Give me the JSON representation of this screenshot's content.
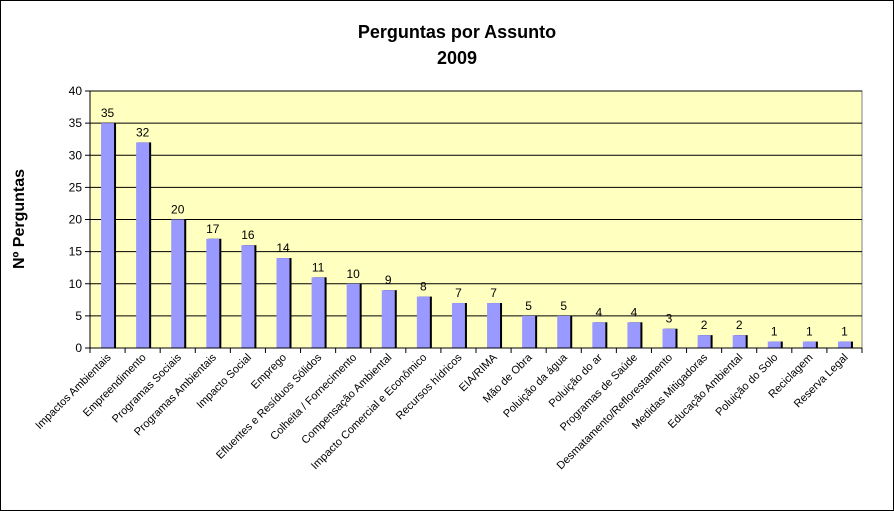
{
  "chart_data": {
    "type": "bar",
    "title": "Perguntas por Assunto",
    "subtitle": "2009",
    "ylabel": "Nº Perguntas",
    "xlabel": "",
    "ylim": [
      0,
      40
    ],
    "yticks": [
      0,
      5,
      10,
      15,
      20,
      25,
      30,
      35,
      40
    ],
    "grid": true,
    "legend": "none",
    "colors": {
      "plot_bg": "#FFFFC0",
      "bar": "#9999FF",
      "bar_shadow": "#000000",
      "grid": "#000000"
    },
    "categories": [
      "Impactos Ambientais",
      "Empreendimento",
      "Programas Sociais",
      "Programas Ambientais",
      "Impacto Social",
      "Emprego",
      "Efluentes e Resíduos Sólidos",
      "Colheita / Fornecimento",
      "Compensação Ambiental",
      "Impacto Comercial e Econômico",
      "Recursos hídricos",
      "EIA/RIMA",
      "Mão de Obra",
      "Poluição da água",
      "Poluição do ar",
      "Programas de Saúde",
      "Desmatamento/Reflorestamento",
      "Medidas Mitigadoras",
      "Educação Ambiental",
      "Poluição do Solo",
      "Reciclagem",
      "Reserva Legal"
    ],
    "values": [
      35,
      32,
      20,
      17,
      16,
      14,
      11,
      10,
      9,
      8,
      7,
      7,
      5,
      5,
      4,
      4,
      3,
      2,
      2,
      1,
      1,
      1
    ]
  }
}
